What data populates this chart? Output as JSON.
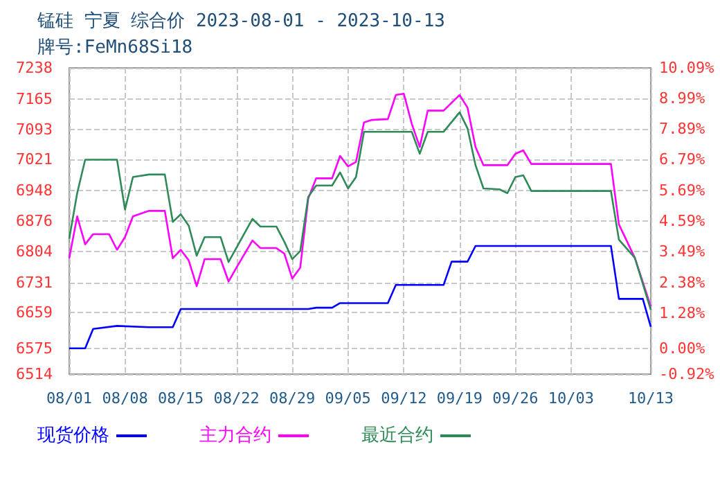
{
  "chart_data": {
    "type": "line",
    "title": "锰硅 宁夏 综合价 2023-08-01 - 2023-10-13",
    "subtitle": "牌号:FeMn68Si18",
    "xlim": [
      "2023-08-01",
      "2023-10-13"
    ],
    "xticks": [
      {
        "value": "2023-08-01",
        "label": "08/01"
      },
      {
        "value": "2023-08-08",
        "label": "08/08"
      },
      {
        "value": "2023-08-15",
        "label": "08/15"
      },
      {
        "value": "2023-08-22",
        "label": "08/22"
      },
      {
        "value": "2023-08-29",
        "label": "08/29"
      },
      {
        "value": "2023-09-05",
        "label": "09/05"
      },
      {
        "value": "2023-09-12",
        "label": "09/12"
      },
      {
        "value": "2023-09-19",
        "label": "09/19"
      },
      {
        "value": "2023-09-26",
        "label": "09/26"
      },
      {
        "value": "2023-10-03",
        "label": "10/03"
      },
      {
        "value": "2023-10-13",
        "label": "10/13"
      }
    ],
    "ylim": [
      6514,
      7238
    ],
    "yticks": [
      6514,
      6575,
      6659,
      6731,
      6804,
      6876,
      6948,
      7021,
      7093,
      7165,
      7238
    ],
    "y2lim": [
      -0.92,
      10.09
    ],
    "y2ticks": [
      {
        "value": -0.92,
        "label": "-0.92%"
      },
      {
        "value": 0,
        "label": "0.00%"
      },
      {
        "value": 1.28,
        "label": "1.28%"
      },
      {
        "value": 2.38,
        "label": "2.38%"
      },
      {
        "value": 3.49,
        "label": "3.49%"
      },
      {
        "value": 4.59,
        "label": "4.59%"
      },
      {
        "value": 5.69,
        "label": "5.69%"
      },
      {
        "value": 6.79,
        "label": "6.79%"
      },
      {
        "value": 7.89,
        "label": "7.89%"
      },
      {
        "value": 8.99,
        "label": "8.99%"
      },
      {
        "value": 10.09,
        "label": "10.09%"
      }
    ],
    "grid": true,
    "legend": "bottom left",
    "marker": "none",
    "line_style": "solid",
    "series": [
      {
        "name": "现货价格",
        "color": "#0000ff",
        "x": [
          "2023-08-01",
          "2023-08-03",
          "2023-08-04",
          "2023-08-07",
          "2023-08-11",
          "2023-08-14",
          "2023-08-15",
          "2023-08-31",
          "2023-09-01",
          "2023-09-03",
          "2023-09-04",
          "2023-09-10",
          "2023-09-11",
          "2023-09-17",
          "2023-09-18",
          "2023-09-20",
          "2023-09-21",
          "2023-10-08",
          "2023-10-09",
          "2023-10-12",
          "2023-10-13"
        ],
        "values": [
          6575,
          6575,
          6621,
          6628,
          6625,
          6625,
          6668,
          6668,
          6671,
          6671,
          6682,
          6682,
          6725,
          6725,
          6780,
          6780,
          6817,
          6817,
          6692,
          6692,
          6626
        ]
      },
      {
        "name": "主力合约",
        "color": "#ff00ff",
        "x": [
          "2023-08-01",
          "2023-08-02",
          "2023-08-03",
          "2023-08-04",
          "2023-08-06",
          "2023-08-07",
          "2023-08-08",
          "2023-08-09",
          "2023-08-11",
          "2023-08-13",
          "2023-08-14",
          "2023-08-15",
          "2023-08-16",
          "2023-08-17",
          "2023-08-18",
          "2023-08-20",
          "2023-08-21",
          "2023-08-22",
          "2023-08-24",
          "2023-08-25",
          "2023-08-27",
          "2023-08-28",
          "2023-08-29",
          "2023-08-30",
          "2023-08-31",
          "2023-09-01",
          "2023-09-03",
          "2023-09-04",
          "2023-09-05",
          "2023-09-06",
          "2023-09-07",
          "2023-09-08",
          "2023-09-10",
          "2023-09-11",
          "2023-09-12",
          "2023-09-13",
          "2023-09-14",
          "2023-09-15",
          "2023-09-17",
          "2023-09-19",
          "2023-09-20",
          "2023-09-21",
          "2023-09-22",
          "2023-09-25",
          "2023-09-26",
          "2023-09-27",
          "2023-09-28",
          "2023-10-08",
          "2023-10-09",
          "2023-10-11",
          "2023-10-13"
        ],
        "values": [
          6788,
          6887,
          6821,
          6845,
          6845,
          6808,
          6838,
          6887,
          6900,
          6900,
          6788,
          6808,
          6783,
          6722,
          6786,
          6786,
          6733,
          6766,
          6830,
          6812,
          6812,
          6799,
          6740,
          6766,
          6929,
          6977,
          6977,
          7030,
          7005,
          7016,
          7109,
          7115,
          7117,
          7174,
          7177,
          7106,
          7051,
          7137,
          7137,
          7174,
          7144,
          7051,
          7008,
          7008,
          7035,
          7043,
          7011,
          7011,
          6868,
          6789,
          6674
        ]
      },
      {
        "name": "最近合约",
        "color": "#2e8b57",
        "x": [
          "2023-08-01",
          "2023-08-02",
          "2023-08-03",
          "2023-08-07",
          "2023-08-08",
          "2023-08-09",
          "2023-08-11",
          "2023-08-13",
          "2023-08-14",
          "2023-08-15",
          "2023-08-16",
          "2023-08-17",
          "2023-08-18",
          "2023-08-20",
          "2023-08-21",
          "2023-08-24",
          "2023-08-25",
          "2023-08-27",
          "2023-08-28",
          "2023-08-29",
          "2023-08-30",
          "2023-08-31",
          "2023-09-01",
          "2023-09-03",
          "2023-09-04",
          "2023-09-05",
          "2023-09-06",
          "2023-09-07",
          "2023-09-13",
          "2023-09-14",
          "2023-09-15",
          "2023-09-17",
          "2023-09-19",
          "2023-09-20",
          "2023-09-21",
          "2023-09-22",
          "2023-09-24",
          "2023-09-25",
          "2023-09-26",
          "2023-09-27",
          "2023-09-28",
          "2023-10-08",
          "2023-10-09",
          "2023-10-11",
          "2023-10-13"
        ],
        "values": [
          6834,
          6942,
          7021,
          7021,
          6903,
          6980,
          6986,
          6986,
          6874,
          6892,
          6865,
          6794,
          6838,
          6838,
          6779,
          6881,
          6863,
          6863,
          6827,
          6786,
          6805,
          6933,
          6960,
          6960,
          6991,
          6953,
          6980,
          7087,
          7087,
          7035,
          7087,
          7087,
          7133,
          7095,
          7008,
          6953,
          6951,
          6942,
          6980,
          6984,
          6947,
          6947,
          6832,
          6789,
          6666
        ]
      }
    ]
  }
}
